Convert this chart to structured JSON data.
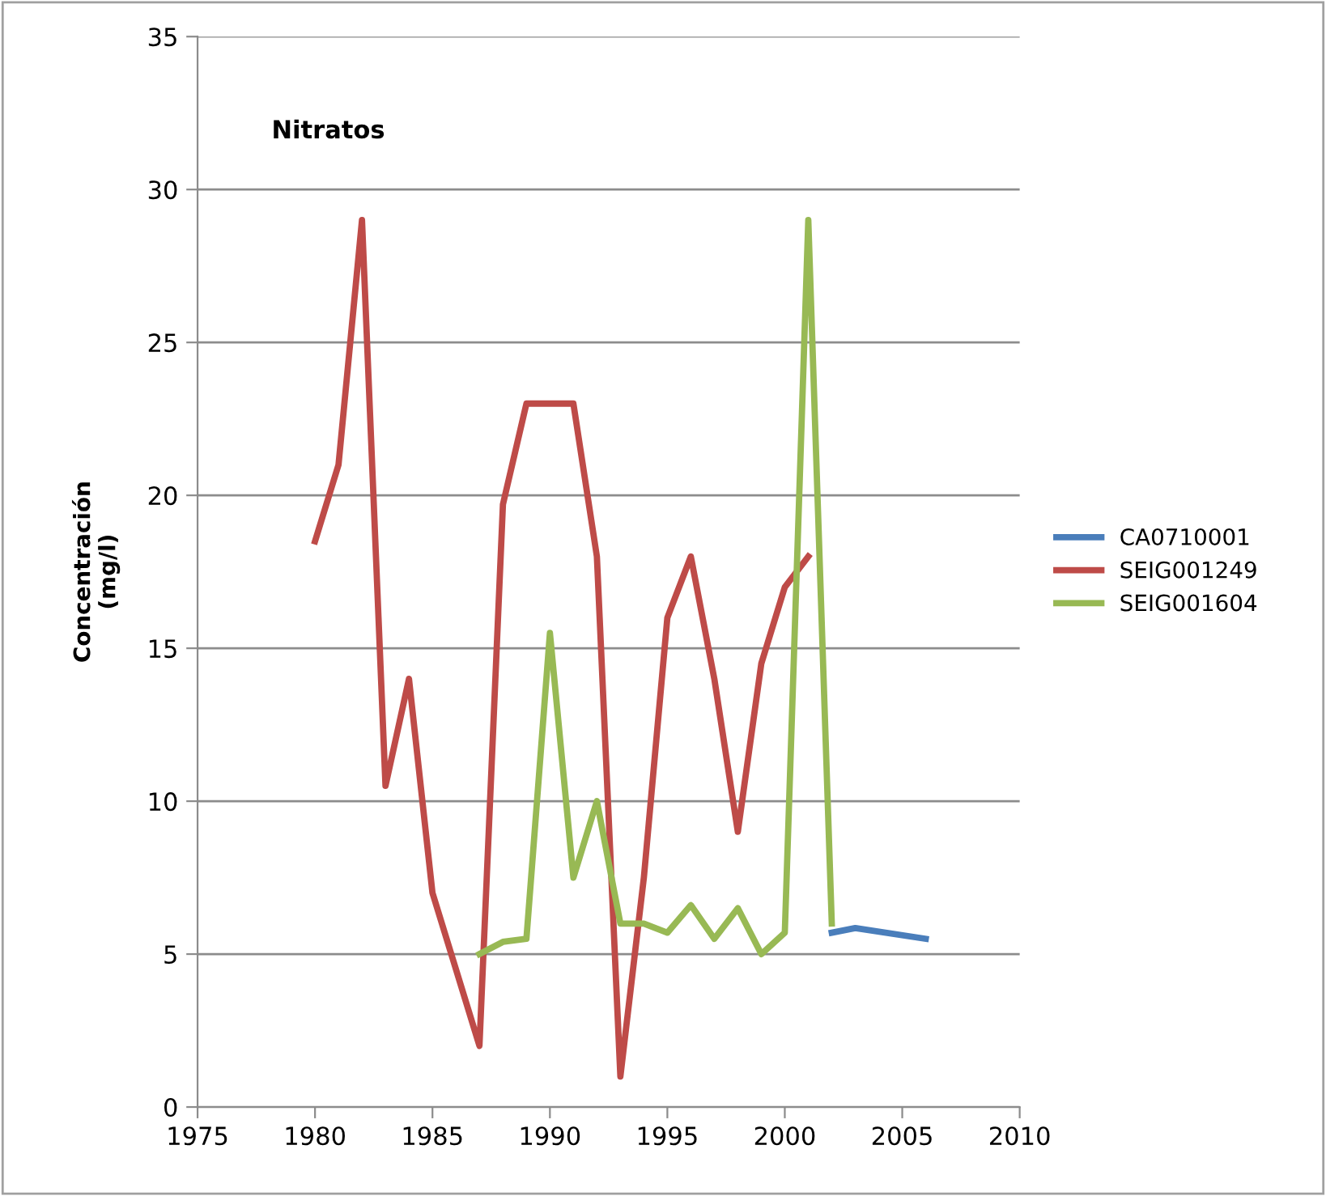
{
  "chart_data": {
    "type": "line",
    "title": "Nitratos",
    "ylabel": "Concentración\n(mg/l)",
    "xlim": [
      1975,
      2010
    ],
    "xticks": [
      1975,
      1980,
      1985,
      1990,
      1995,
      2000,
      2005,
      2010
    ],
    "ylim": [
      0,
      35
    ],
    "yticks": [
      0,
      5,
      10,
      15,
      20,
      25,
      30,
      35
    ],
    "grid": "y",
    "legend": "right",
    "marker": "none",
    "line_style": "solid",
    "series": [
      {
        "name": "CA0710001",
        "color": "#4a7ebb",
        "x": [
          2002,
          2003,
          2006
        ],
        "values": [
          5.7,
          5.85,
          5.5
        ]
      },
      {
        "name": "SEIG001249",
        "color": "#be4b48",
        "x": [
          1980,
          1981,
          1982,
          1983,
          1984,
          1985,
          1986,
          1987,
          1988,
          1989,
          1990,
          1991,
          1992,
          1993,
          1994,
          1995,
          1996,
          1997,
          1998,
          1999,
          2000,
          2001
        ],
        "values": [
          18.5,
          21,
          29,
          10.5,
          14,
          7,
          4.5,
          2,
          19.7,
          23,
          23,
          23,
          18,
          1,
          7.5,
          16,
          18,
          14,
          9,
          14.5,
          17,
          18
        ]
      },
      {
        "name": "SEIG001604",
        "color": "#98b954",
        "x": [
          1987,
          1988,
          1989,
          1990,
          1991,
          1992,
          1993,
          1994,
          1995,
          1996,
          1997,
          1998,
          1999,
          2000,
          2001,
          2002
        ],
        "values": [
          5,
          5.4,
          5.5,
          15.5,
          7.5,
          10,
          6,
          6,
          5.7,
          6.6,
          5.5,
          6.5,
          5,
          5.7,
          29,
          6
        ]
      }
    ]
  }
}
